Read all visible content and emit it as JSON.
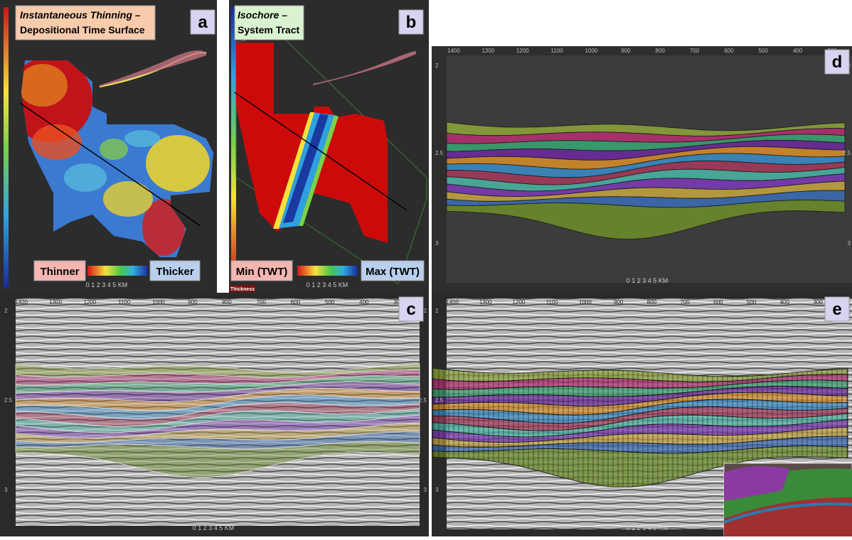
{
  "panels": {
    "a": {
      "label": "a",
      "title_line1": "Instantaneous Thinning –",
      "title_line2": "Depositional Time Surface",
      "legend_min": "Thinner",
      "legend_max": "Thicker"
    },
    "b": {
      "label": "b",
      "title_line1": "Isochore –",
      "title_line2": "System Tract",
      "legend_min": "Min (TWT)",
      "legend_max": "Max (TWT)",
      "colorbar_tag": "Thickness"
    },
    "c": {
      "label": "c"
    },
    "d": {
      "label": "d"
    },
    "e": {
      "label": "e"
    }
  },
  "scale_bar": "0 1 2 3 4 5 KM",
  "inline_ticks": [
    1400,
    1300,
    1200,
    1100,
    1000,
    900,
    800,
    700,
    600,
    500,
    400,
    300
  ],
  "time_ticks": [
    "2",
    "2.5",
    "3"
  ]
}
